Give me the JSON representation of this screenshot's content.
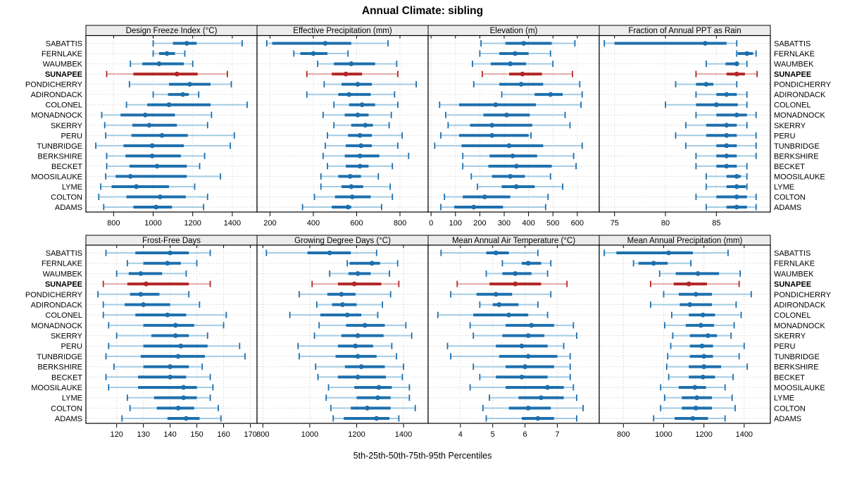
{
  "chart_data": {
    "type": "dotplot",
    "subtype": "percentile-interval-plot",
    "title": "Annual Climate: sibling",
    "caption": "5th-25th-50th-75th-95th Percentiles",
    "percentiles": [
      5,
      25,
      50,
      75,
      95
    ],
    "grid": "dotted",
    "legend_position": "none",
    "highlight_site": "SUNAPEE",
    "colors": {
      "normal": "#1d6fad",
      "normal_light": "#a4cbe4",
      "highlight": "#b22726",
      "highlight_light": "#e2aaa6",
      "strip_bg": "#ececec",
      "gridline": "#c6c6c6",
      "panel_border": "#000000",
      "text": "#000000"
    },
    "sites": [
      "SABATTIS",
      "FERNLAKE",
      "WAUMBEK",
      "SUNAPEE",
      "PONDICHERRY",
      "ADIRONDACK",
      "COLONEL",
      "MONADNOCK",
      "SKERRY",
      "PERU",
      "TUNBRIDGE",
      "BERKSHIRE",
      "BECKET",
      "MOOSILAUKE",
      "LYME",
      "COLTON",
      "ADAMS"
    ],
    "panels": [
      {
        "label": "Design Freeze Index (°C)",
        "xlim": [
          660,
          1525
        ],
        "ticks": [
          800,
          1000,
          1200,
          1400
        ],
        "values": [
          [
            1000,
            1100,
            1170,
            1220,
            1450
          ],
          [
            1000,
            1030,
            1070,
            1110,
            1160
          ],
          [
            885,
            945,
            1030,
            1155,
            1200
          ],
          [
            765,
            900,
            1120,
            1225,
            1375
          ],
          [
            880,
            1080,
            1185,
            1290,
            1395
          ],
          [
            1000,
            1075,
            1150,
            1180,
            1230
          ],
          [
            865,
            970,
            1080,
            1290,
            1475
          ],
          [
            740,
            835,
            960,
            1110,
            1295
          ],
          [
            755,
            895,
            980,
            1120,
            1275
          ],
          [
            760,
            890,
            1045,
            1175,
            1410
          ],
          [
            710,
            850,
            995,
            1155,
            1390
          ],
          [
            765,
            860,
            995,
            1140,
            1260
          ],
          [
            765,
            880,
            1020,
            1170,
            1235
          ],
          [
            760,
            810,
            885,
            1170,
            1340
          ],
          [
            735,
            790,
            915,
            1080,
            1210
          ],
          [
            725,
            865,
            1035,
            1165,
            1275
          ],
          [
            750,
            900,
            1015,
            1095,
            1255
          ]
        ]
      },
      {
        "label": "Effective Precipitation (mm)",
        "xlim": [
          140,
          930
        ],
        "ticks": [
          200,
          400,
          600,
          800
        ],
        "values": [
          [
            185,
            210,
            455,
            575,
            745
          ],
          [
            310,
            340,
            400,
            465,
            560
          ],
          [
            420,
            495,
            575,
            685,
            785
          ],
          [
            370,
            485,
            550,
            625,
            790
          ],
          [
            450,
            530,
            605,
            670,
            875
          ],
          [
            370,
            515,
            565,
            665,
            775
          ],
          [
            495,
            565,
            625,
            685,
            790
          ],
          [
            445,
            545,
            605,
            655,
            760
          ],
          [
            495,
            575,
            640,
            675,
            750
          ],
          [
            465,
            560,
            615,
            670,
            810
          ],
          [
            455,
            550,
            620,
            670,
            790
          ],
          [
            445,
            545,
            615,
            705,
            840
          ],
          [
            465,
            550,
            615,
            655,
            765
          ],
          [
            435,
            515,
            570,
            620,
            700
          ],
          [
            435,
            530,
            575,
            630,
            755
          ],
          [
            405,
            500,
            580,
            665,
            765
          ],
          [
            350,
            485,
            560,
            575,
            715
          ]
        ]
      },
      {
        "label": "Elevation (m)",
        "xlim": [
          -12,
          690
        ],
        "ticks": [
          0,
          100,
          200,
          300,
          400,
          500,
          600
        ],
        "values": [
          [
            205,
            305,
            380,
            495,
            590
          ],
          [
            200,
            280,
            345,
            400,
            490
          ],
          [
            170,
            245,
            325,
            390,
            500
          ],
          [
            210,
            320,
            375,
            455,
            580
          ],
          [
            175,
            280,
            370,
            460,
            610
          ],
          [
            290,
            425,
            490,
            540,
            620
          ],
          [
            35,
            115,
            265,
            430,
            615
          ],
          [
            60,
            215,
            310,
            405,
            550
          ],
          [
            70,
            160,
            250,
            415,
            570
          ],
          [
            40,
            115,
            250,
            400,
            410
          ],
          [
            15,
            125,
            320,
            460,
            620
          ],
          [
            130,
            240,
            335,
            435,
            585
          ],
          [
            130,
            235,
            350,
            495,
            595
          ],
          [
            165,
            250,
            325,
            385,
            490
          ],
          [
            190,
            290,
            350,
            425,
            540
          ],
          [
            55,
            130,
            220,
            325,
            480
          ],
          [
            40,
            95,
            175,
            295,
            470
          ]
        ]
      },
      {
        "label": "Fraction of Annual PPT as Rain",
        "xlim": [
          73.5,
          90.3
        ],
        "ticks": [
          75,
          80,
          85
        ],
        "values": [
          [
            74,
            75,
            83.9,
            86,
            87
          ],
          [
            87,
            87.1,
            88,
            88.6,
            88.9
          ],
          [
            84,
            85.9,
            87,
            87.2,
            88
          ],
          [
            83,
            86,
            87,
            87.8,
            89
          ],
          [
            81,
            83,
            84,
            84.7,
            87
          ],
          [
            83,
            85,
            86,
            87,
            88
          ],
          [
            80,
            83,
            85,
            87.1,
            88
          ],
          [
            83,
            85,
            87,
            88,
            88.9
          ],
          [
            82,
            84,
            86,
            87,
            88
          ],
          [
            81,
            84,
            86,
            87,
            88.9
          ],
          [
            82,
            85,
            86,
            87,
            88.9
          ],
          [
            83,
            85,
            86,
            87,
            88.9
          ],
          [
            83,
            85,
            86,
            87,
            88
          ],
          [
            84,
            86,
            87,
            87.4,
            88
          ],
          [
            84,
            86,
            87,
            87.9,
            88
          ],
          [
            83,
            85,
            87,
            88,
            88.9
          ],
          [
            84,
            86,
            87,
            88,
            88.9
          ]
        ]
      },
      {
        "label": "Frost-Free Days",
        "xlim": [
          108.5,
          172.5
        ],
        "ticks": [
          120,
          130,
          140,
          150,
          160,
          170
        ],
        "values": [
          [
            116,
            127,
            140,
            147,
            155
          ],
          [
            124,
            130,
            139,
            144,
            150
          ],
          [
            120,
            124.5,
            129,
            137,
            146
          ],
          [
            115,
            124,
            131,
            147,
            155
          ],
          [
            113,
            125,
            129,
            136,
            147
          ],
          [
            115,
            123,
            130,
            140,
            151
          ],
          [
            115,
            127,
            139,
            146,
            161
          ],
          [
            117,
            130,
            142,
            149,
            160
          ],
          [
            120,
            133,
            142,
            147,
            154
          ],
          [
            117,
            130,
            144,
            154,
            166
          ],
          [
            116,
            129,
            143,
            153,
            168
          ],
          [
            119,
            130,
            140,
            147,
            152
          ],
          [
            116,
            128,
            140,
            146,
            155
          ],
          [
            117,
            128,
            145,
            150,
            156
          ],
          [
            124,
            134,
            145,
            150,
            155
          ],
          [
            125,
            135,
            143,
            149,
            158
          ],
          [
            122,
            139,
            146,
            151,
            159
          ]
        ]
      },
      {
        "label": "Growing Degree Days (°C)",
        "xlim": [
          775,
          1505
        ],
        "ticks": [
          800,
          1000,
          1200,
          1400
        ],
        "values": [
          [
            815,
            990,
            1085,
            1175,
            1285
          ],
          [
            1160,
            1170,
            1265,
            1300,
            1375
          ],
          [
            1085,
            1165,
            1205,
            1260,
            1340
          ],
          [
            1010,
            1120,
            1190,
            1305,
            1380
          ],
          [
            955,
            1075,
            1135,
            1195,
            1345
          ],
          [
            1030,
            1095,
            1140,
            1200,
            1310
          ],
          [
            915,
            1045,
            1160,
            1220,
            1290
          ],
          [
            1040,
            1155,
            1235,
            1320,
            1410
          ],
          [
            1020,
            1135,
            1205,
            1315,
            1435
          ],
          [
            950,
            1120,
            1195,
            1270,
            1350
          ],
          [
            955,
            1110,
            1205,
            1285,
            1370
          ],
          [
            1025,
            1150,
            1220,
            1320,
            1400
          ],
          [
            1035,
            1120,
            1205,
            1325,
            1395
          ],
          [
            1080,
            1190,
            1295,
            1350,
            1425
          ],
          [
            1070,
            1200,
            1290,
            1345,
            1425
          ],
          [
            1090,
            1175,
            1245,
            1345,
            1450
          ],
          [
            1100,
            1145,
            1285,
            1340,
            1380
          ]
        ]
      },
      {
        "label": "Mean Annual Air Temperature (°C)",
        "xlim": [
          3.0,
          8.3
        ],
        "ticks": [
          4,
          5,
          6,
          7
        ],
        "values": [
          [
            3.4,
            4.8,
            5.1,
            5.5,
            6.4
          ],
          [
            5.3,
            5.9,
            6.1,
            6.5,
            6.8
          ],
          [
            4.8,
            5.3,
            5.7,
            6.2,
            6.7
          ],
          [
            3.9,
            4.9,
            5.7,
            6.5,
            7.3
          ],
          [
            3.7,
            4.5,
            5.1,
            5.6,
            6.8
          ],
          [
            4.6,
            5.0,
            5.2,
            5.8,
            6.4
          ],
          [
            3.3,
            4.4,
            5.5,
            6.1,
            6.7
          ],
          [
            4.3,
            5.4,
            6.2,
            6.9,
            7.5
          ],
          [
            4.4,
            5.3,
            6.1,
            6.6,
            7.6
          ],
          [
            3.6,
            5.1,
            5.9,
            6.7,
            7.2
          ],
          [
            3.7,
            5.2,
            6.1,
            7.0,
            7.4
          ],
          [
            4.4,
            5.4,
            6.0,
            6.9,
            7.4
          ],
          [
            4.6,
            5.1,
            5.9,
            6.7,
            7.4
          ],
          [
            4.3,
            5.4,
            6.7,
            7.2,
            7.5
          ],
          [
            4.9,
            5.8,
            6.5,
            7.2,
            7.6
          ],
          [
            4.7,
            5.5,
            6.1,
            6.8,
            7.8
          ],
          [
            4.8,
            5.9,
            6.4,
            6.9,
            7.6
          ]
        ]
      },
      {
        "label": "Mean Annual Precipitation (mm)",
        "xlim": [
          680,
          1530
        ],
        "ticks": [
          800,
          1000,
          1200,
          1400
        ],
        "values": [
          [
            705,
            765,
            1025,
            1145,
            1320
          ],
          [
            850,
            875,
            950,
            1020,
            1135
          ],
          [
            980,
            1060,
            1170,
            1275,
            1380
          ],
          [
            935,
            1050,
            1125,
            1215,
            1375
          ],
          [
            1000,
            1075,
            1160,
            1240,
            1435
          ],
          [
            935,
            1080,
            1130,
            1240,
            1360
          ],
          [
            1040,
            1125,
            1195,
            1255,
            1385
          ],
          [
            1005,
            1110,
            1185,
            1250,
            1350
          ],
          [
            1045,
            1130,
            1220,
            1265,
            1335
          ],
          [
            1035,
            1130,
            1190,
            1245,
            1400
          ],
          [
            1020,
            1130,
            1200,
            1245,
            1375
          ],
          [
            1015,
            1125,
            1200,
            1285,
            1415
          ],
          [
            1025,
            1125,
            1195,
            1255,
            1345
          ],
          [
            985,
            1075,
            1155,
            1210,
            1305
          ],
          [
            1005,
            1090,
            1165,
            1240,
            1340
          ],
          [
            985,
            1090,
            1160,
            1240,
            1355
          ],
          [
            950,
            1055,
            1145,
            1220,
            1305
          ]
        ]
      }
    ]
  }
}
